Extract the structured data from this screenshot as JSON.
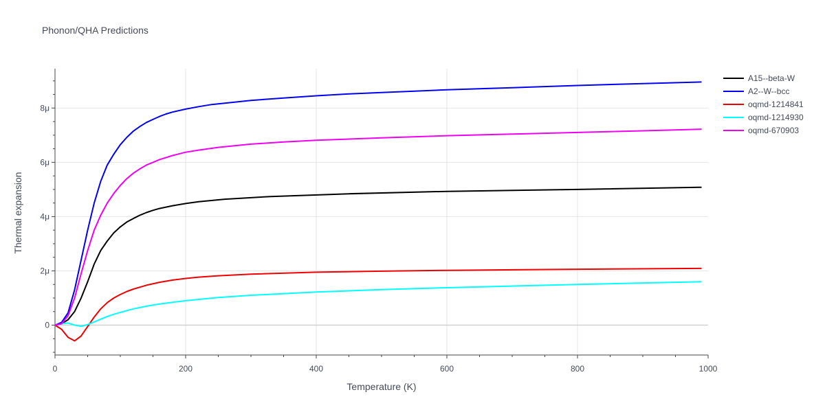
{
  "chart_data": {
    "type": "line",
    "title": "Phonon/QHA Predictions",
    "xlabel": "Temperature (K)",
    "ylabel": "Thermal expansion",
    "xlim": [
      0,
      1000
    ],
    "ylim": [
      -1.1e-06,
      9.45e-06
    ],
    "xticks": [
      0,
      200,
      400,
      600,
      800,
      1000
    ],
    "xtick_labels": [
      "0",
      "200",
      "400",
      "600",
      "800",
      "1000"
    ],
    "yticks": [
      0,
      2e-06,
      4e-06,
      6e-06,
      8e-06
    ],
    "ytick_labels": [
      "0",
      "2μ",
      "4μ",
      "6μ",
      "8μ"
    ],
    "grid": true,
    "legend_position": "right",
    "series": [
      {
        "name": "A15--beta-W",
        "color": "#000000",
        "x": [
          0,
          10,
          20,
          30,
          40,
          50,
          60,
          70,
          80,
          90,
          100,
          110,
          120,
          130,
          140,
          150,
          160,
          180,
          200,
          220,
          260,
          330,
          450,
          600,
          800,
          990
        ],
        "y": [
          0,
          5e-08,
          2e-07,
          5e-07,
          1e-06,
          1.6e-06,
          2.25e-06,
          2.75e-06,
          3.1e-06,
          3.4e-06,
          3.62e-06,
          3.8e-06,
          3.93e-06,
          4.05e-06,
          4.15e-06,
          4.23e-06,
          4.3e-06,
          4.4e-06,
          4.48e-06,
          4.55e-06,
          4.64e-06,
          4.74e-06,
          4.84e-06,
          4.93e-06,
          5e-06,
          5.08e-06
        ]
      },
      {
        "name": "A2--W--bcc",
        "color": "#0000ee",
        "x": [
          0,
          10,
          20,
          30,
          40,
          50,
          60,
          70,
          80,
          90,
          100,
          110,
          120,
          130,
          140,
          150,
          160,
          170,
          180,
          200,
          220,
          240,
          260,
          280,
          300,
          350,
          400,
          450,
          500,
          600,
          700,
          800,
          900,
          990
        ],
        "y": [
          0,
          1e-07,
          4.5e-07,
          1.3e-06,
          2.4e-06,
          3.5e-06,
          4.5e-06,
          5.3e-06,
          5.9e-06,
          6.3e-06,
          6.65e-06,
          6.92e-06,
          7.15e-06,
          7.32e-06,
          7.47e-06,
          7.58e-06,
          7.69e-06,
          7.78e-06,
          7.85e-06,
          7.96e-06,
          8.05e-06,
          8.13e-06,
          8.18e-06,
          8.23e-06,
          8.28e-06,
          8.37e-06,
          8.45e-06,
          8.52e-06,
          8.57e-06,
          8.67e-06,
          8.75e-06,
          8.83e-06,
          8.9e-06,
          8.96e-06
        ]
      },
      {
        "name": "oqmd-1214841",
        "color": "#ee0000",
        "x": [
          0,
          10,
          20,
          30,
          40,
          50,
          60,
          70,
          80,
          90,
          100,
          110,
          120,
          140,
          160,
          180,
          200,
          220,
          250,
          300,
          400,
          500,
          600,
          800,
          990
        ],
        "y": [
          0,
          -1.5e-07,
          -4.5e-07,
          -5.8e-07,
          -4e-07,
          -5e-08,
          3e-07,
          6e-07,
          8.3e-07,
          1e-06,
          1.13e-06,
          1.24e-06,
          1.33e-06,
          1.47e-06,
          1.58e-06,
          1.66e-06,
          1.72e-06,
          1.77e-06,
          1.82e-06,
          1.88e-06,
          1.95e-06,
          1.99e-06,
          2.02e-06,
          2.06e-06,
          2.09e-06
        ]
      },
      {
        "name": "oqmd-1214930",
        "color": "#00ffff",
        "x": [
          0,
          10,
          20,
          30,
          40,
          50,
          60,
          70,
          80,
          90,
          100,
          120,
          140,
          160,
          180,
          200,
          250,
          300,
          400,
          500,
          600,
          800,
          990
        ],
        "y": [
          0,
          5e-08,
          8e-08,
          0.0,
          -4e-08,
          2e-08,
          1.2e-07,
          2.2e-07,
          3.2e-07,
          4e-07,
          4.7e-07,
          6e-07,
          7e-07,
          7.8e-07,
          8.4e-07,
          9e-07,
          1.02e-06,
          1.1e-06,
          1.22e-06,
          1.31e-06,
          1.38e-06,
          1.5e-06,
          1.6e-06
        ]
      },
      {
        "name": "oqmd-670903",
        "color": "#ee00ee",
        "x": [
          0,
          10,
          20,
          30,
          40,
          50,
          60,
          70,
          80,
          90,
          100,
          110,
          120,
          130,
          140,
          150,
          160,
          180,
          200,
          220,
          250,
          300,
          350,
          400,
          500,
          600,
          700,
          800,
          900,
          990
        ],
        "y": [
          0,
          5e-08,
          3.5e-07,
          1e-06,
          1.9e-06,
          2.75e-06,
          3.5e-06,
          4.05e-06,
          4.5e-06,
          4.85e-06,
          5.15e-06,
          5.4e-06,
          5.6e-06,
          5.76e-06,
          5.9e-06,
          6e-06,
          6.1e-06,
          6.25e-06,
          6.37e-06,
          6.45e-06,
          6.55e-06,
          6.67e-06,
          6.75e-06,
          6.81e-06,
          6.9e-06,
          6.98e-06,
          7.04e-06,
          7.1e-06,
          7.16e-06,
          7.22e-06
        ]
      }
    ]
  }
}
